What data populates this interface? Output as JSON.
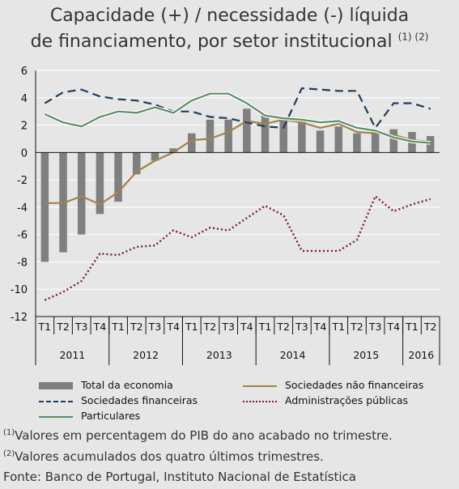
{
  "title": {
    "line1": "Capacidade (+) / necessidade (-) líquida",
    "line2": "de financiamento, por setor institucional",
    "refs": "(1) (2)"
  },
  "chart_data": {
    "type": "bar",
    "title": "Capacidade (+) / necessidade (-) líquida de financiamento, por setor institucional",
    "ylim": [
      -12,
      6
    ],
    "yticks": [
      6,
      4,
      2,
      0,
      -2,
      -4,
      -6,
      -8,
      -10,
      -12
    ],
    "grid": true,
    "legend_position": "bottom",
    "categories": [
      "T1",
      "T2",
      "T3",
      "T4",
      "T1",
      "T2",
      "T3",
      "T4",
      "T1",
      "T2",
      "T3",
      "T4",
      "T1",
      "T2",
      "T3",
      "T4",
      "T1",
      "T2",
      "T3",
      "T4",
      "T1",
      "T2"
    ],
    "years": [
      {
        "label": "2011",
        "span": 4
      },
      {
        "label": "2012",
        "span": 4
      },
      {
        "label": "2013",
        "span": 4
      },
      {
        "label": "2014",
        "span": 4
      },
      {
        "label": "2015",
        "span": 4
      },
      {
        "label": "2016",
        "span": 2
      }
    ],
    "series": [
      {
        "name": "Total da economia",
        "kind": "bar",
        "color": "#7f7f7f",
        "values": [
          -8.0,
          -7.3,
          -6.0,
          -4.5,
          -3.6,
          -1.6,
          -0.6,
          0.3,
          1.4,
          2.4,
          2.4,
          3.2,
          2.8,
          2.4,
          2.3,
          1.6,
          1.9,
          1.4,
          1.5,
          1.7,
          1.5,
          1.2
        ]
      },
      {
        "name": "Sociedades não financeiras",
        "kind": "line",
        "style": "solid",
        "color": "#a2844a",
        "values": [
          -3.7,
          -3.7,
          -3.2,
          -3.8,
          -2.9,
          -1.4,
          -0.6,
          0.0,
          0.9,
          1.0,
          1.5,
          2.3,
          2.1,
          2.4,
          2.2,
          1.8,
          2.1,
          1.5,
          1.4,
          1.3,
          0.9,
          0.8
        ]
      },
      {
        "name": "Sociedades financeiras",
        "kind": "line",
        "style": "dashed",
        "color": "#1f3c5a",
        "values": [
          3.6,
          4.4,
          4.6,
          4.1,
          3.9,
          3.8,
          3.5,
          3.0,
          3.0,
          2.6,
          2.5,
          2.2,
          1.9,
          1.8,
          4.7,
          4.6,
          4.5,
          4.5,
          1.8,
          3.6,
          3.6,
          3.2
        ]
      },
      {
        "name": "Administrações públicas",
        "kind": "line",
        "style": "dotted",
        "color": "#7b1e25",
        "values": [
          -10.8,
          -10.2,
          -9.4,
          -7.4,
          -7.5,
          -6.9,
          -6.8,
          -5.7,
          -6.2,
          -5.5,
          -5.7,
          -4.8,
          -3.9,
          -4.6,
          -7.2,
          -7.2,
          -7.2,
          -6.4,
          -3.2,
          -4.3,
          -3.8,
          -3.4
        ]
      },
      {
        "name": "Particulares",
        "kind": "line",
        "style": "solid",
        "color": "#5a8c64",
        "values": [
          2.8,
          2.2,
          1.9,
          2.6,
          3.0,
          2.9,
          3.3,
          2.9,
          3.8,
          4.3,
          4.3,
          3.6,
          2.7,
          2.5,
          2.4,
          2.2,
          2.3,
          1.8,
          1.6,
          1.1,
          0.8,
          0.7
        ]
      }
    ]
  },
  "legend": {
    "items": [
      {
        "label": "Total da economia"
      },
      {
        "label": "Sociedades não financeiras"
      },
      {
        "label": "Sociedades financeiras"
      },
      {
        "label": "Administrações públicas"
      },
      {
        "label": "Particulares"
      }
    ]
  },
  "notes": {
    "note1_ref": "(1)",
    "note1": "Valores em percentagem do PIB do ano acabado no trimestre.",
    "note2_ref": "(2)",
    "note2": "Valores acumulados dos quatro últimos trimestres.",
    "source": "Fonte: Banco de Portugal, Instituto Nacional de Estatística"
  }
}
